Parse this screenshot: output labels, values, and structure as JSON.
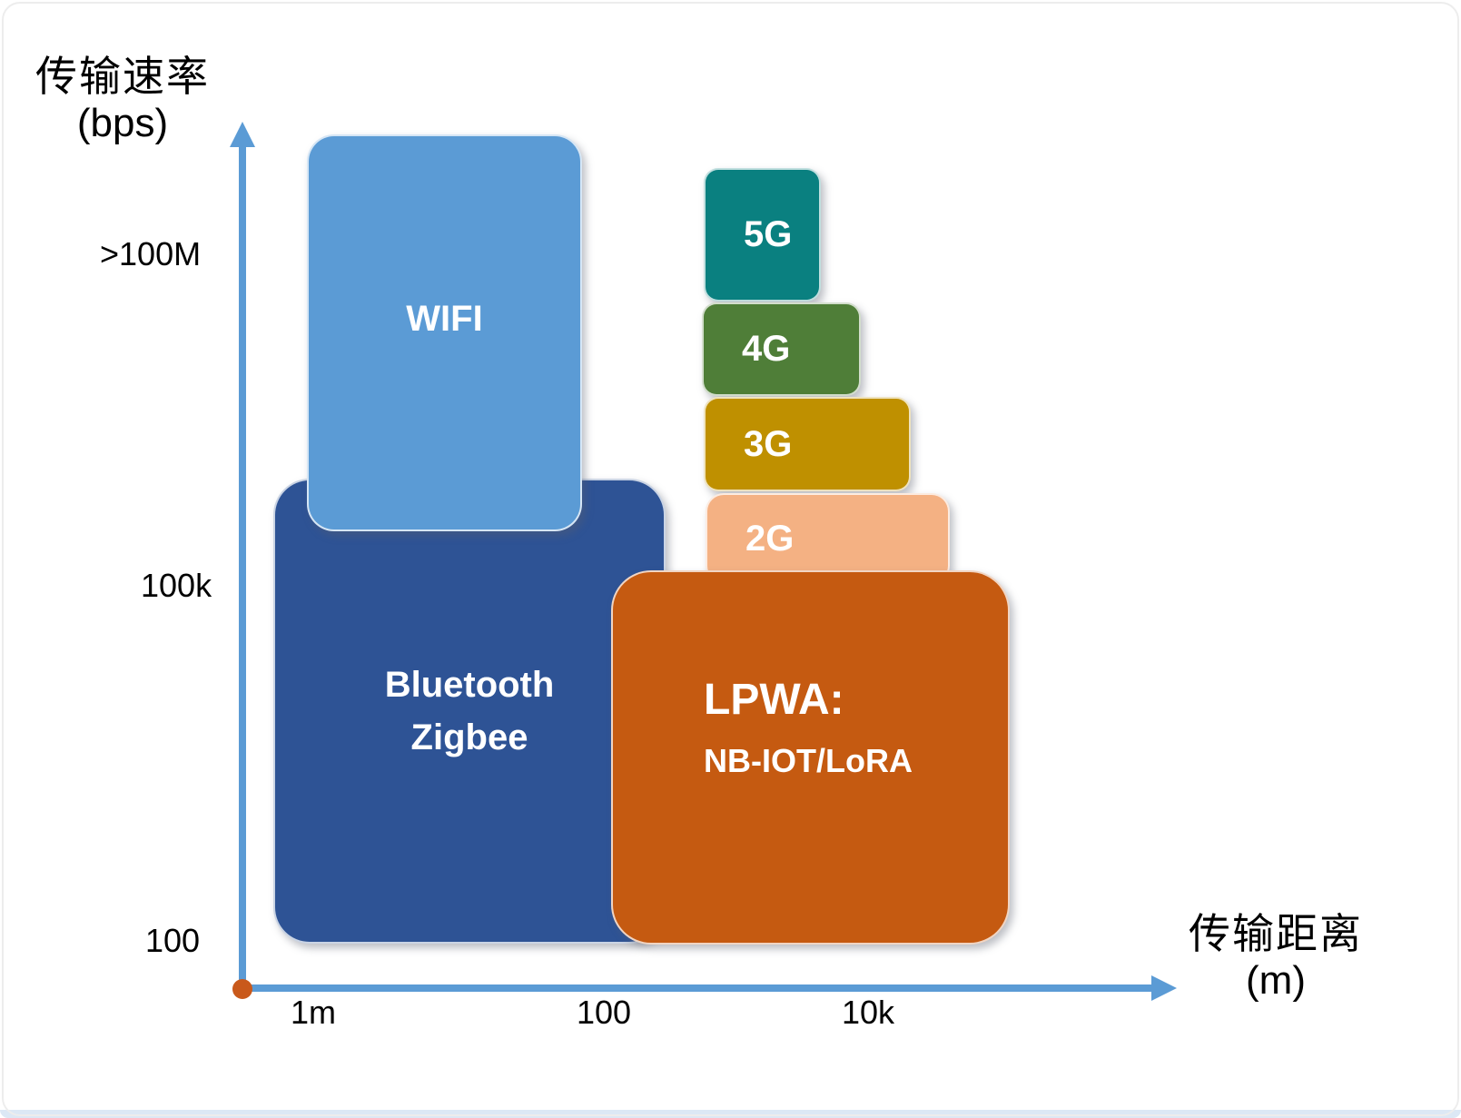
{
  "y_axis": {
    "title": "传输速率",
    "unit": "(bps)",
    "ticks": [
      ">100M",
      "100k",
      "100"
    ]
  },
  "x_axis": {
    "title": "传输距离",
    "unit": "(m)",
    "ticks": [
      "1m",
      "100",
      "10k"
    ]
  },
  "colors": {
    "axis": "#5B9BD5",
    "origin_dot": "#C9591B",
    "wifi": "#5B9BD5",
    "bluetooth": "#2E5395",
    "g5": "#0A8080",
    "g4": "#4F7E38",
    "g3": "#BF9000",
    "g2": "#F4B183",
    "lpwa": "#C55A11"
  },
  "boxes": {
    "wifi": {
      "label": "WIFI"
    },
    "bluetooth": {
      "line1": "Bluetooth",
      "line2": "Zigbee"
    },
    "g5": {
      "label": "5G"
    },
    "g4": {
      "label": "4G"
    },
    "g3": {
      "label": "3G"
    },
    "g2": {
      "label": "2G"
    },
    "lpwa": {
      "line1": "LPWA:",
      "line2": "NB-IOT/LoRA"
    }
  },
  "chart_data": {
    "type": "area",
    "title": "",
    "xlabel": "传输距离 (m)",
    "ylabel": "传输速率 (bps)",
    "x_scale": "log",
    "y_scale": "log",
    "x_ticks": [
      "1m",
      "100",
      "10k"
    ],
    "y_ticks": [
      ">100M",
      "100k",
      "100"
    ],
    "grid": false,
    "legend": "none",
    "regions": [
      {
        "label": "WIFI",
        "color": "#5B9BD5",
        "approx_distance_m": [
          2,
          100
        ],
        "approx_rate_bps": [
          "500k",
          ">100M"
        ]
      },
      {
        "label": "Bluetooth Zigbee",
        "color": "#2E5395",
        "approx_distance_m": [
          1,
          300
        ],
        "approx_rate_bps": [
          "100",
          "1M"
        ]
      },
      {
        "label": "5G",
        "color": "#0A8080",
        "approx_distance_m": [
          300,
          3000
        ],
        "approx_rate_bps": [
          "20M",
          ">100M"
        ]
      },
      {
        "label": "4G",
        "color": "#4F7E38",
        "approx_distance_m": [
          300,
          5000
        ],
        "approx_rate_bps": [
          "5M",
          "20M"
        ]
      },
      {
        "label": "3G",
        "color": "#BF9000",
        "approx_distance_m": [
          300,
          10000
        ],
        "approx_rate_bps": [
          "1M",
          "5M"
        ]
      },
      {
        "label": "2G",
        "color": "#F4B183",
        "approx_distance_m": [
          300,
          20000
        ],
        "approx_rate_bps": [
          "300k",
          "1M"
        ]
      },
      {
        "label": "LPWA: NB-IOT/LoRA",
        "color": "#C55A11",
        "approx_distance_m": [
          100,
          30000
        ],
        "approx_rate_bps": [
          "100",
          "200k"
        ]
      }
    ]
  }
}
